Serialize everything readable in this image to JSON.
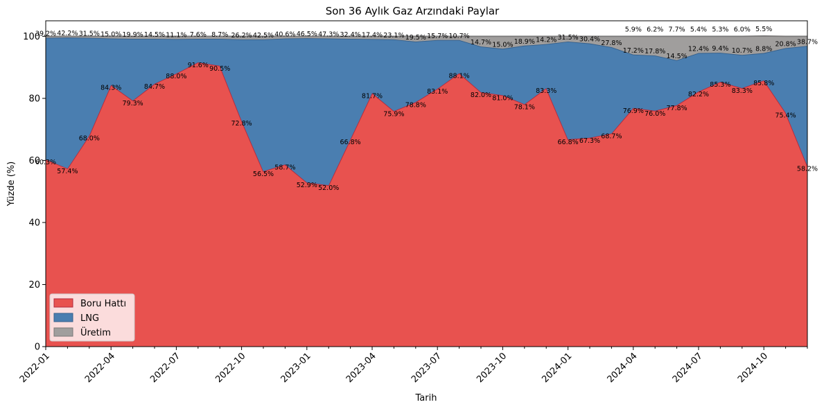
{
  "chart_data": {
    "type": "area",
    "stacked": true,
    "title": "Son 36 Aylık Gaz Arzındaki Paylar",
    "xlabel": "Tarih",
    "ylabel": "Yüzde (%)",
    "ylim": [
      0,
      105
    ],
    "y_ticks": [
      "0",
      "20",
      "40",
      "60",
      "80",
      "100"
    ],
    "x_ticks": [
      "2022-01",
      "2022-04",
      "2022-07",
      "2022-10",
      "2023-01",
      "2023-04",
      "2023-07",
      "2023-10",
      "2024-01",
      "2024-04",
      "2024-07",
      "2024-10"
    ],
    "x": [
      "2022-01",
      "2022-02",
      "2022-03",
      "2022-04",
      "2022-05",
      "2022-06",
      "2022-07",
      "2022-08",
      "2022-09",
      "2022-10",
      "2022-11",
      "2022-12",
      "2023-01",
      "2023-02",
      "2023-03",
      "2023-04",
      "2023-05",
      "2023-06",
      "2023-07",
      "2023-08",
      "2023-09",
      "2023-10",
      "2023-11",
      "2023-12",
      "2024-01",
      "2024-02",
      "2024-03",
      "2024-04",
      "2024-05",
      "2024-06",
      "2024-07",
      "2024-08",
      "2024-09",
      "2024-10",
      "2024-11",
      "2024-12"
    ],
    "legend_position": "lower-left",
    "grid": false,
    "series": [
      {
        "name": "Boru Hattı",
        "color": "#e8524f",
        "edge_color": "#b22a3e",
        "values": [
          60.3,
          57.4,
          68.0,
          84.3,
          79.3,
          84.7,
          88.0,
          91.6,
          90.5,
          72.8,
          56.5,
          58.7,
          52.9,
          52.0,
          66.8,
          81.7,
          75.9,
          78.8,
          83.1,
          88.1,
          82.0,
          81.0,
          78.1,
          83.3,
          66.8,
          67.3,
          68.7,
          76.9,
          76.0,
          77.8,
          82.2,
          85.3,
          83.3,
          85.8,
          75.4,
          58.2
        ],
        "labels": [
          "60.3%",
          "57.4%",
          "68.0%",
          "84.3%",
          "79.3%",
          "84.7%",
          "88.0%",
          "91.6%",
          "90.5%",
          "72.8%",
          "56.5%",
          "58.7%",
          "52.9%",
          "52.0%",
          "66.8%",
          "81.7%",
          "75.9%",
          "78.8%",
          "83.1%",
          "88.1%",
          "82.0%",
          "81.0%",
          "78.1%",
          "83.3%",
          "66.8%",
          "67.3%",
          "68.7%",
          "76.9%",
          "76.0%",
          "77.8%",
          "82.2%",
          "85.3%",
          "83.3%",
          "85.8%",
          "75.4%",
          "58.2%"
        ]
      },
      {
        "name": "LNG",
        "color": "#4a7eb0",
        "edge_color": "#35608c",
        "values": [
          39.2,
          42.2,
          31.5,
          15.0,
          19.9,
          14.5,
          11.1,
          7.6,
          8.7,
          26.2,
          42.5,
          40.6,
          46.5,
          47.3,
          32.4,
          17.4,
          23.1,
          19.5,
          15.7,
          10.7,
          14.7,
          15.0,
          18.9,
          14.2,
          31.5,
          30.4,
          27.8,
          17.2,
          17.8,
          14.5,
          12.4,
          9.4,
          10.7,
          8.8,
          20.8,
          38.7
        ],
        "labels": [
          "39.2%",
          "42.2%",
          "31.5%",
          "15.0%",
          "19.9%",
          "14.5%",
          "11.1%",
          "7.6%",
          "8.7%",
          "26.2%",
          "42.5%",
          "40.6%",
          "46.5%",
          "47.3%",
          "32.4%",
          "17.4%",
          "23.1%",
          "19.5%",
          "15.7%",
          "10.7%",
          "14.7%",
          "15.0%",
          "18.9%",
          "14.2%",
          "31.5%",
          "30.4%",
          "27.8%",
          "17.2%",
          "17.8%",
          "14.5%",
          "12.4%",
          "9.4%",
          "10.7%",
          "8.8%",
          "20.8%",
          "38.7%"
        ]
      },
      {
        "name": "Üretim",
        "color": "#a09e9d",
        "edge_color": "#7a7878",
        "values": [
          0.5,
          0.4,
          0.5,
          0.7,
          0.8,
          0.8,
          0.9,
          0.8,
          0.8,
          1.0,
          1.0,
          0.7,
          0.6,
          0.7,
          0.8,
          0.9,
          1.0,
          1.7,
          1.2,
          1.2,
          3.3,
          4.0,
          3.0,
          2.5,
          1.7,
          2.3,
          3.5,
          5.9,
          6.2,
          7.7,
          5.4,
          5.3,
          6.0,
          5.5,
          3.8,
          3.1
        ],
        "labels": [
          "",
          "",
          "",
          "",
          "",
          "",
          "",
          "",
          "",
          "",
          "",
          "",
          "",
          "",
          "",
          "",
          "",
          "",
          "",
          "",
          "",
          "",
          "",
          "",
          "",
          "",
          "",
          "5.9%",
          "6.2%",
          "7.7%",
          "5.4%",
          "5.3%",
          "6.0%",
          "5.5%",
          "",
          ""
        ]
      }
    ]
  }
}
